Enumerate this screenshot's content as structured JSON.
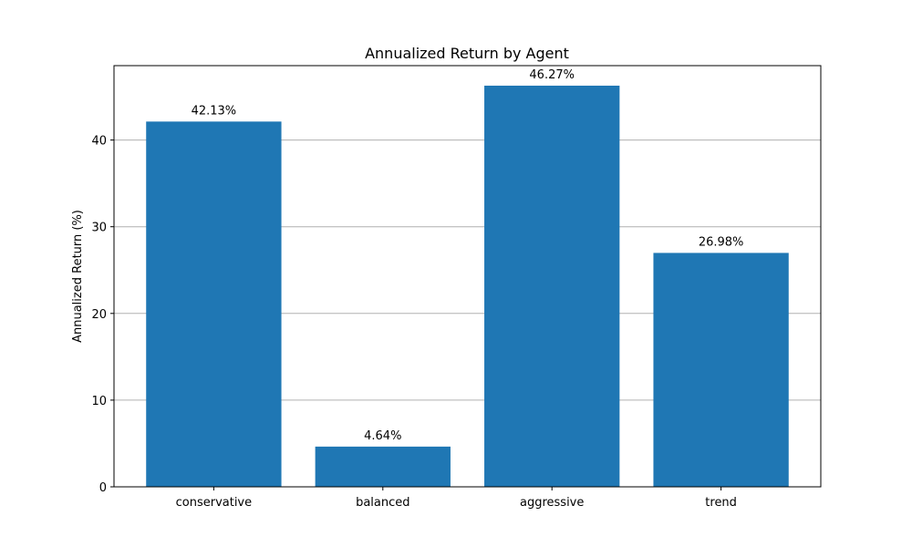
{
  "chart_data": {
    "type": "bar",
    "title": "Annualized Return by Agent",
    "xlabel": "",
    "ylabel": "Annualized Return (%)",
    "categories": [
      "conservative",
      "balanced",
      "aggressive",
      "trend"
    ],
    "values": [
      42.13,
      4.64,
      46.27,
      26.98
    ],
    "data_labels": [
      "42.13%",
      "4.64%",
      "46.27%",
      "26.98%"
    ],
    "ylim": [
      0,
      48.58
    ],
    "yticks": [
      0,
      10,
      20,
      30,
      40
    ],
    "ytick_labels": [
      "0",
      "10",
      "20",
      "30",
      "40"
    ],
    "grid": "y",
    "legend": "none",
    "bar_color": "#1f77b4",
    "grid_color": "#b0b0b0"
  }
}
